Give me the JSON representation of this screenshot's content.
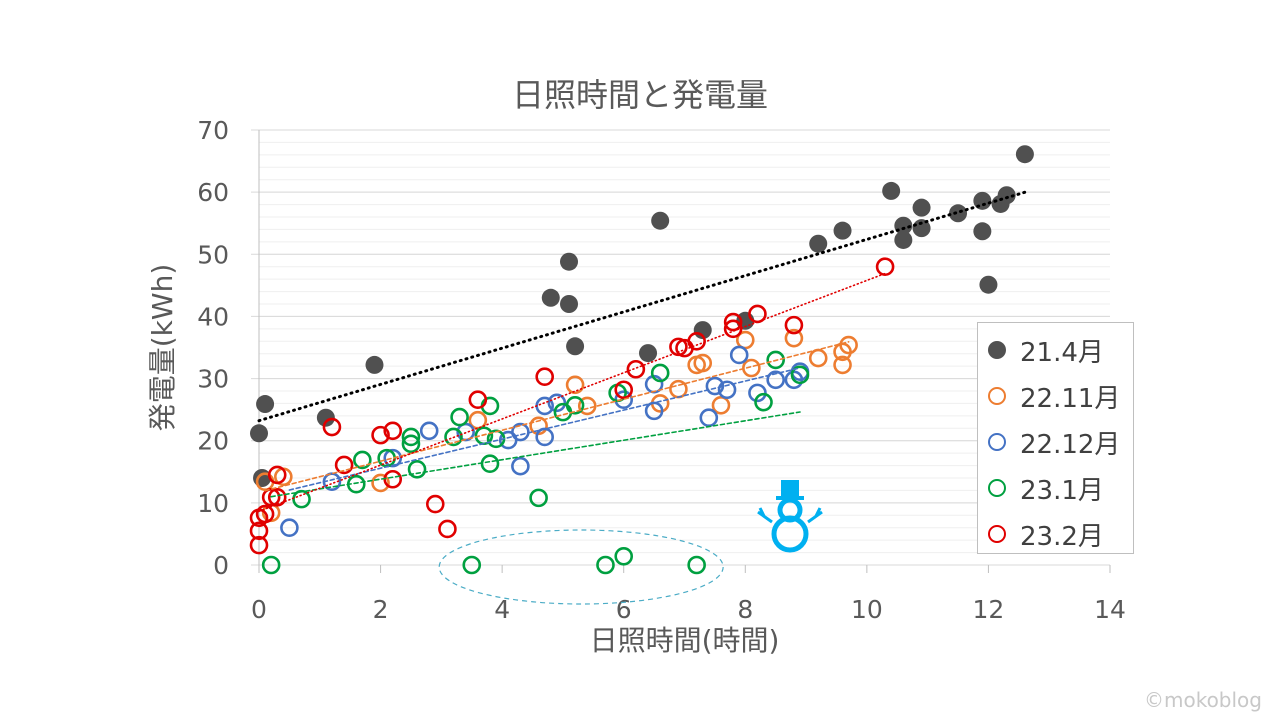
{
  "chart_data": {
    "type": "scatter",
    "title": "日照時間と発電量",
    "xlabel": "日照時間(時間)",
    "ylabel": "発電量(kWh)",
    "xlim": [
      0,
      14
    ],
    "ylim": [
      0,
      70
    ],
    "xticks": [
      0,
      2,
      4,
      6,
      8,
      10,
      12,
      14
    ],
    "yticks": [
      0,
      10,
      20,
      30,
      40,
      50,
      60,
      70
    ],
    "grid": true,
    "legend_position": "right",
    "trendlines": "linear",
    "series": [
      {
        "name": "21.4月",
        "color": "#505050",
        "filled": true,
        "trend_style": "dotted-black",
        "points": [
          [
            0,
            21.2
          ],
          [
            0.1,
            25.9
          ],
          [
            0.05,
            14
          ],
          [
            1.1,
            23.7
          ],
          [
            1.9,
            32.2
          ],
          [
            4.8,
            43
          ],
          [
            5.1,
            48.8
          ],
          [
            5.1,
            42
          ],
          [
            5.2,
            35.2
          ],
          [
            6.4,
            34.1
          ],
          [
            6.6,
            55.4
          ],
          [
            7.3,
            37.8
          ],
          [
            8.0,
            39.3
          ],
          [
            9.2,
            51.7
          ],
          [
            9.6,
            53.8
          ],
          [
            10.4,
            60.2
          ],
          [
            10.6,
            54.6
          ],
          [
            10.6,
            52.3
          ],
          [
            10.9,
            57.5
          ],
          [
            10.9,
            54.2
          ],
          [
            11.5,
            56.6
          ],
          [
            11.9,
            58.6
          ],
          [
            11.9,
            53.7
          ],
          [
            12.0,
            45.1
          ],
          [
            12.2,
            58.1
          ],
          [
            12.3,
            59.5
          ],
          [
            12.6,
            66.1
          ]
        ]
      },
      {
        "name": "22.11月",
        "color": "#ED7D31",
        "filled": false,
        "points": [
          [
            0.1,
            13.4
          ],
          [
            0.4,
            14.2
          ],
          [
            0.2,
            8.4
          ],
          [
            2.0,
            13.2
          ],
          [
            3.6,
            23.3
          ],
          [
            4.6,
            22.4
          ],
          [
            5.2,
            29
          ],
          [
            5.4,
            25.6
          ],
          [
            6.6,
            26
          ],
          [
            6.9,
            28.3
          ],
          [
            7.2,
            32.2
          ],
          [
            7.3,
            32.5
          ],
          [
            7.6,
            25.7
          ],
          [
            8.0,
            36.2
          ],
          [
            8.1,
            31.7
          ],
          [
            8.8,
            36.5
          ],
          [
            9.2,
            33.3
          ],
          [
            9.6,
            34.3
          ],
          [
            9.6,
            32.2
          ],
          [
            9.7,
            35.4
          ]
        ]
      },
      {
        "name": "22.12月",
        "color": "#4472C4",
        "filled": false,
        "points": [
          [
            0.5,
            6
          ],
          [
            1.2,
            13.4
          ],
          [
            2.2,
            17.2
          ],
          [
            2.8,
            21.6
          ],
          [
            3.4,
            21.4
          ],
          [
            4.1,
            20.1
          ],
          [
            4.3,
            21.4
          ],
          [
            4.3,
            15.9
          ],
          [
            4.7,
            25.6
          ],
          [
            4.7,
            20.6
          ],
          [
            4.9,
            26.1
          ],
          [
            6.0,
            26.6
          ],
          [
            6.5,
            29.1
          ],
          [
            6.5,
            24.8
          ],
          [
            7.4,
            23.7
          ],
          [
            7.5,
            28.8
          ],
          [
            7.7,
            28.2
          ],
          [
            7.9,
            33.8
          ],
          [
            8.2,
            27.7
          ],
          [
            8.5,
            29.8
          ],
          [
            8.8,
            29.8
          ],
          [
            8.9,
            31.1
          ]
        ]
      },
      {
        "name": "23.1月",
        "color": "#00A040",
        "filled": false,
        "points": [
          [
            0.2,
            0
          ],
          [
            0.7,
            10.6
          ],
          [
            1.6,
            13
          ],
          [
            1.7,
            16.9
          ],
          [
            2.1,
            17.2
          ],
          [
            2.5,
            19.5
          ],
          [
            2.5,
            20.6
          ],
          [
            2.6,
            15.4
          ],
          [
            3.2,
            20.6
          ],
          [
            3.3,
            23.8
          ],
          [
            3.5,
            0
          ],
          [
            3.7,
            20.8
          ],
          [
            3.8,
            25.6
          ],
          [
            3.8,
            16.3
          ],
          [
            3.9,
            20.3
          ],
          [
            4.6,
            10.8
          ],
          [
            5.0,
            24.6
          ],
          [
            5.2,
            25.7
          ],
          [
            5.7,
            0
          ],
          [
            5.9,
            27.7
          ],
          [
            6.0,
            1.4
          ],
          [
            6.6,
            30.9
          ],
          [
            7.2,
            0
          ],
          [
            8.3,
            26.2
          ],
          [
            8.5,
            33
          ],
          [
            8.9,
            30.6
          ]
        ]
      },
      {
        "name": "23.2月",
        "color": "#E00000",
        "filled": false,
        "points": [
          [
            0,
            3.2
          ],
          [
            0,
            5.5
          ],
          [
            0,
            7.6
          ],
          [
            0.1,
            8.2
          ],
          [
            0.2,
            10.9
          ],
          [
            0.3,
            14.5
          ],
          [
            0.3,
            10.9
          ],
          [
            1.2,
            22.2
          ],
          [
            1.4,
            16.1
          ],
          [
            2.0,
            20.9
          ],
          [
            2.2,
            21.6
          ],
          [
            2.2,
            13.8
          ],
          [
            2.9,
            9.8
          ],
          [
            3.1,
            5.8
          ],
          [
            3.6,
            26.6
          ],
          [
            4.7,
            30.3
          ],
          [
            6.0,
            28.2
          ],
          [
            6.2,
            31.5
          ],
          [
            6.9,
            35.1
          ],
          [
            7.0,
            34.9
          ],
          [
            7.2,
            36
          ],
          [
            7.8,
            38
          ],
          [
            7.8,
            39.1
          ],
          [
            8.2,
            40.4
          ],
          [
            8.8,
            38.6
          ],
          [
            10.3,
            48
          ]
        ]
      }
    ],
    "annotation_ellipse_center": [
      5.3,
      0
    ]
  },
  "watermark": "©mokoblog",
  "colors": {
    "axis_text": "#595959",
    "grid": "#d9d9d9",
    "ellipse": "#4BACC6",
    "snowman": "#00B0F0"
  }
}
